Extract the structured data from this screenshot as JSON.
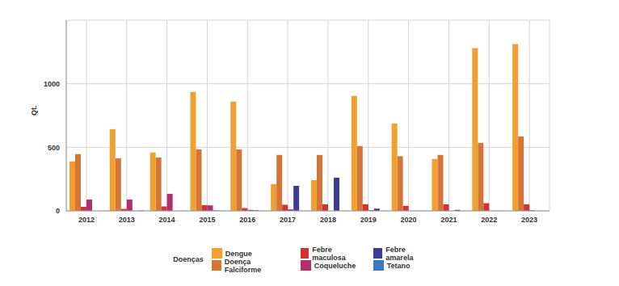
{
  "chart_data": {
    "type": "bar",
    "y_label": "Qt.",
    "categories": [
      "2012",
      "2013",
      "2014",
      "2015",
      "2016",
      "2017",
      "2018",
      "2019",
      "2020",
      "2021",
      "2022",
      "2023"
    ],
    "series": [
      {
        "name": "Dengue",
        "color": "#f0a030",
        "values": [
          389,
          643,
          459,
          936,
          860,
          210,
          242,
          904,
          688,
          408,
          1280,
          1312
        ]
      },
      {
        "name": "Doença Falciforme",
        "color": "#d4763a",
        "values": [
          446,
          414,
          420,
          484,
          484,
          440,
          440,
          510,
          430,
          440,
          535,
          586
        ]
      },
      {
        "name": "Febre maculosa",
        "color": "#cf3333",
        "values": [
          32,
          15,
          35,
          45,
          22,
          48,
          52,
          52,
          40,
          52,
          60,
          52
        ]
      },
      {
        "name": "Coqueluche",
        "color": "#b0306e",
        "values": [
          89,
          89,
          134,
          43,
          8,
          12,
          0,
          5,
          0,
          0,
          0,
          5
        ]
      },
      {
        "name": "Febre amarela",
        "color": "#3c3c96",
        "values": [
          0,
          0,
          0,
          3,
          5,
          197,
          261,
          18,
          0,
          8,
          0,
          0
        ]
      },
      {
        "name": "Tetano",
        "color": "#3a78c0",
        "values": [
          0,
          3,
          0,
          0,
          0,
          0,
          0,
          0,
          0,
          0,
          0,
          0
        ]
      }
    ],
    "ylim": [
      0,
      1500
    ],
    "yticks": [
      0,
      500,
      1000
    ],
    "grid": true,
    "legend": "bottom",
    "legend_title": "Doenças"
  }
}
